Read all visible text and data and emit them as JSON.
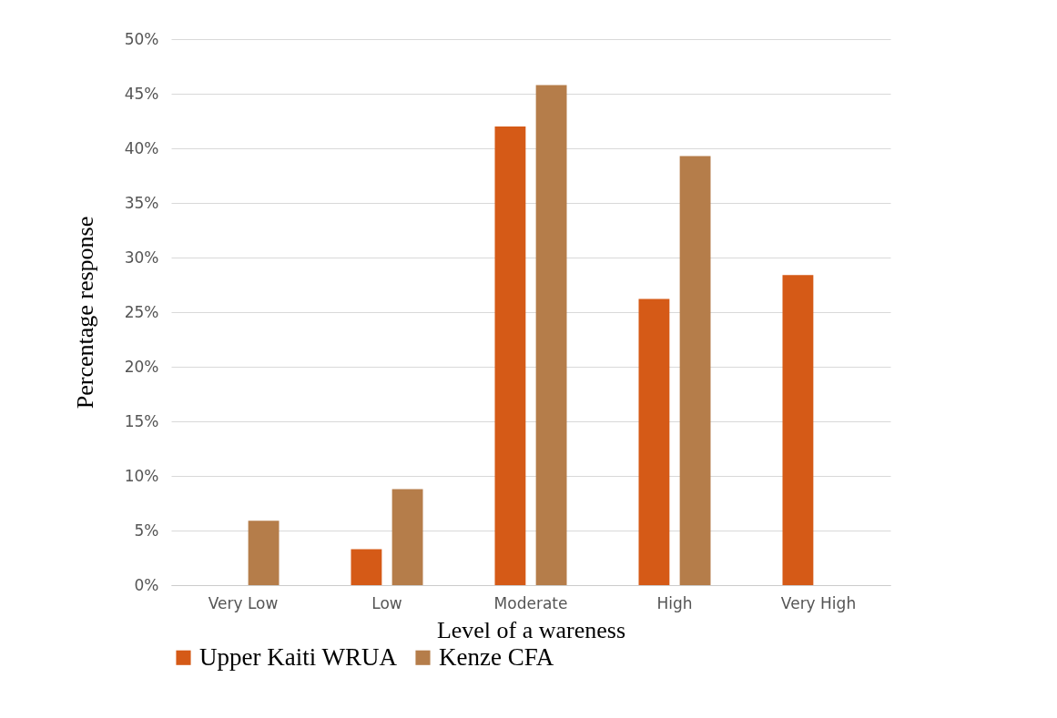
{
  "chart_data": {
    "type": "bar",
    "xlabel": "Level of a wareness",
    "ylabel": "Percentage response",
    "categories": [
      "Very Low",
      "Low",
      "Moderate",
      "High",
      "Very High"
    ],
    "series": [
      {
        "name": "Upper Kaiti WRUA",
        "color": "#d55a17",
        "values": [
          0,
          3.3,
          42,
          26.2,
          28.4
        ]
      },
      {
        "name": "Kenze CFA",
        "color": "#b57d4a",
        "values": [
          5.9,
          8.8,
          45.8,
          39.3,
          0
        ]
      }
    ],
    "ylim": [
      0,
      50
    ],
    "yticks": [
      {
        "value": 0,
        "label": "0%"
      },
      {
        "value": 5,
        "label": "5%"
      },
      {
        "value": 10,
        "label": "10%"
      },
      {
        "value": 15,
        "label": "15%"
      },
      {
        "value": 20,
        "label": "20%"
      },
      {
        "value": 25,
        "label": "25%"
      },
      {
        "value": 30,
        "label": "30%"
      },
      {
        "value": 35,
        "label": "35%"
      },
      {
        "value": 40,
        "label": "40%"
      },
      {
        "value": 45,
        "label": "45%"
      },
      {
        "value": 50,
        "label": "50%"
      }
    ],
    "grid": "y",
    "legend": "bottom"
  }
}
